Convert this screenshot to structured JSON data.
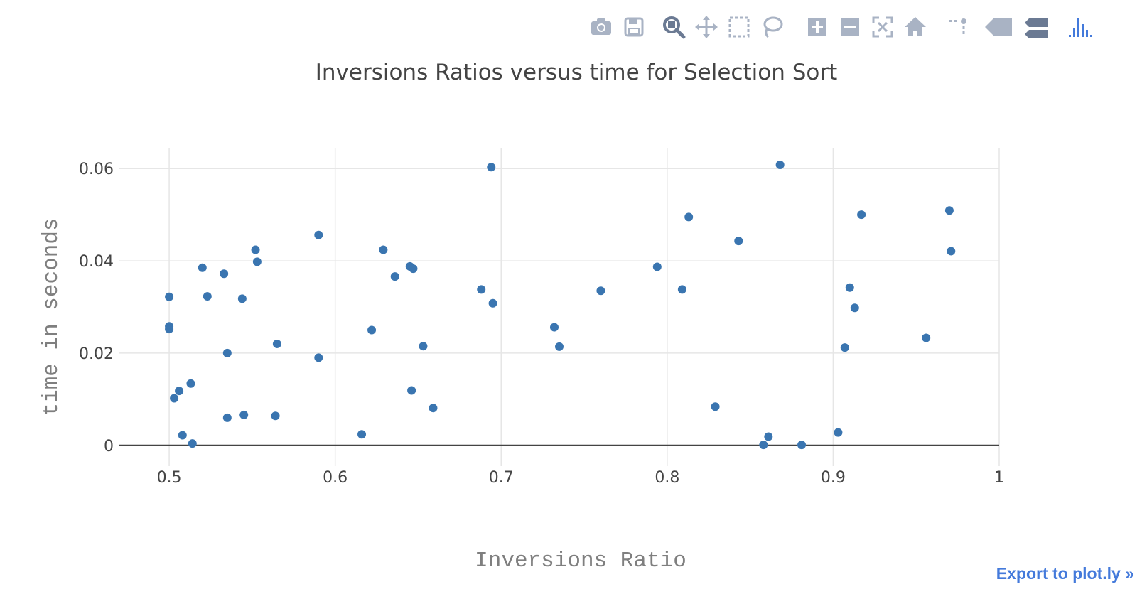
{
  "toolbar": {
    "icons": [
      "camera-icon",
      "save-icon",
      "zoom-icon",
      "pan-icon",
      "box-select-icon",
      "lasso-select-icon",
      "zoom-in-icon",
      "zoom-out-icon",
      "autoscale-icon",
      "reset-axes-icon",
      "spike-lines-icon",
      "hover-closest-icon",
      "hover-compare-icon",
      "plotly-logo-icon"
    ]
  },
  "export_link": "Export to plot.ly »",
  "colors": {
    "marker": "#3a75b0",
    "grid": "#e6e6e6",
    "zeroline": "#444444",
    "title": "#444444",
    "axis_title": "#7f7f7f",
    "link": "#447adb"
  },
  "chart_data": {
    "type": "scatter",
    "title": "Inversions Ratios versus time for Selection Sort",
    "xlabel": "Inversions Ratio",
    "ylabel": "time in seconds",
    "xlim": [
      0.47,
      1.0
    ],
    "ylim": [
      -0.0045,
      0.0645
    ],
    "xticks": [
      0.5,
      0.6,
      0.7,
      0.8,
      0.9,
      1.0
    ],
    "xtick_labels": [
      "0.5",
      "0.6",
      "0.7",
      "0.8",
      "0.9",
      "1"
    ],
    "yticks": [
      0,
      0.02,
      0.04,
      0.06
    ],
    "ytick_labels": [
      "0",
      "0.02",
      "0.04",
      "0.06"
    ],
    "grid": true,
    "legend": "none",
    "x": [
      0.5,
      0.5,
      0.5,
      0.503,
      0.506,
      0.508,
      0.513,
      0.514,
      0.52,
      0.523,
      0.533,
      0.535,
      0.535,
      0.544,
      0.545,
      0.552,
      0.553,
      0.564,
      0.565,
      0.59,
      0.59,
      0.616,
      0.622,
      0.629,
      0.636,
      0.645,
      0.646,
      0.647,
      0.653,
      0.659,
      0.688,
      0.694,
      0.695,
      0.732,
      0.735,
      0.76,
      0.794,
      0.809,
      0.813,
      0.829,
      0.843,
      0.858,
      0.861,
      0.868,
      0.881,
      0.903,
      0.907,
      0.91,
      0.913,
      0.917,
      0.956,
      0.97,
      0.971
    ],
    "y": [
      0.0322,
      0.0258,
      0.0252,
      0.0102,
      0.0118,
      0.0022,
      0.0134,
      0.0004,
      0.0385,
      0.0323,
      0.0372,
      0.02,
      0.006,
      0.0318,
      0.0066,
      0.0424,
      0.0398,
      0.0064,
      0.022,
      0.0456,
      0.019,
      0.0024,
      0.025,
      0.0424,
      0.0366,
      0.0388,
      0.0119,
      0.0383,
      0.0215,
      0.0081,
      0.0338,
      0.0603,
      0.0308,
      0.0256,
      0.0214,
      0.0335,
      0.0387,
      0.0338,
      0.0495,
      0.0084,
      0.0443,
      0.0001,
      0.0019,
      0.0608,
      0.0001,
      0.0028,
      0.0212,
      0.0342,
      0.0298,
      0.05,
      0.0233,
      0.0509,
      0.0421
    ]
  }
}
